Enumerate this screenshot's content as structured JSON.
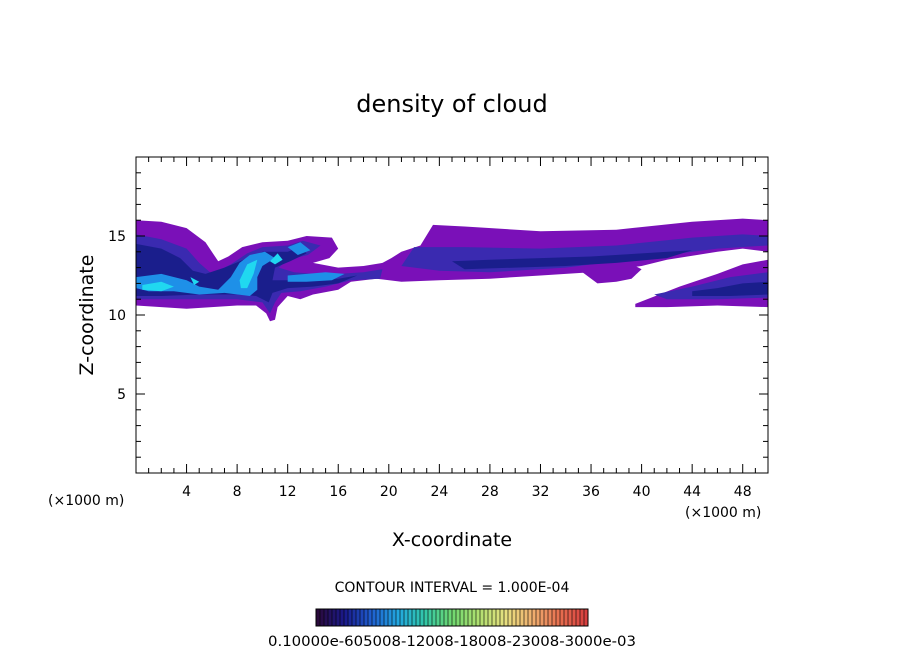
{
  "chart_data": {
    "type": "heatmap",
    "title": "density of cloud",
    "xlabel": "X-coordinate",
    "ylabel": "Z-coordinate",
    "x_unit": "(×1000 m)",
    "xlim": [
      0,
      50
    ],
    "ylim": [
      0,
      20
    ],
    "x_ticks": [
      4,
      8,
      12,
      16,
      20,
      24,
      28,
      32,
      36,
      40,
      44,
      48
    ],
    "y_ticks": [
      5,
      10,
      15
    ],
    "contour_interval_text": "CONTOUR INTERVAL = 1.000E-04",
    "colorbar": {
      "min": 0.0001,
      "max": 0.003,
      "label_text": "0.10000e-605008-12008-18008-23008-3000e-03",
      "colors": [
        "#2a0a3c",
        "#1a1a8c",
        "#1f5fd0",
        "#22a8e0",
        "#33c8a8",
        "#6fd870",
        "#b0e070",
        "#e8e080",
        "#f0b070",
        "#e87050",
        "#d84040"
      ]
    },
    "fill_colors": {
      "low": "#7a10b8",
      "mid": "#3a2ab0",
      "deep": "#1a1e8c",
      "high": "#1e90e8",
      "peak": "#20d8f0"
    },
    "regions": [
      {
        "level": "low",
        "points": [
          [
            0,
            16
          ],
          [
            2,
            15.9
          ],
          [
            4,
            15.5
          ],
          [
            5.5,
            14.6
          ],
          [
            6.5,
            13.4
          ],
          [
            7.3,
            13.7
          ],
          [
            8.4,
            14.3
          ],
          [
            10,
            14.6
          ],
          [
            12,
            14.7
          ],
          [
            13.5,
            15
          ],
          [
            15.5,
            14.9
          ],
          [
            16,
            14.2
          ],
          [
            15.3,
            13.6
          ],
          [
            14,
            13.3
          ],
          [
            16,
            13
          ],
          [
            18,
            13.1
          ],
          [
            19.5,
            13.3
          ],
          [
            20.2,
            13.6
          ],
          [
            21,
            14
          ],
          [
            22.5,
            14.4
          ],
          [
            23.5,
            15.7
          ],
          [
            26,
            15.6
          ],
          [
            32,
            15.3
          ],
          [
            38,
            15.4
          ],
          [
            44,
            15.9
          ],
          [
            48,
            16.1
          ],
          [
            50,
            16
          ],
          [
            50,
            14
          ],
          [
            48,
            14.2
          ],
          [
            46,
            14
          ],
          [
            42,
            13.5
          ],
          [
            40,
            13.1
          ],
          [
            36,
            12.7
          ],
          [
            32,
            12.5
          ],
          [
            28,
            12.3
          ],
          [
            24,
            12.2
          ],
          [
            21,
            12.1
          ],
          [
            19,
            12.3
          ],
          [
            17,
            12.1
          ],
          [
            16,
            11.6
          ],
          [
            14,
            11.3
          ],
          [
            13,
            11
          ],
          [
            12,
            11.2
          ],
          [
            11.2,
            10.5
          ],
          [
            11,
            9.7
          ],
          [
            10.6,
            9.6
          ],
          [
            10.3,
            10.1
          ],
          [
            9.5,
            10.6
          ],
          [
            8,
            10.6
          ],
          [
            4,
            10.4
          ],
          [
            0,
            10.6
          ]
        ]
      },
      {
        "level": "low",
        "points": [
          [
            35,
            12.9
          ],
          [
            37,
            13.1
          ],
          [
            39,
            13.3
          ],
          [
            40,
            12.9
          ],
          [
            39.2,
            12.3
          ],
          [
            38,
            12.1
          ],
          [
            36.5,
            12
          ]
        ]
      },
      {
        "level": "low",
        "points": [
          [
            39.5,
            10.7
          ],
          [
            43,
            11.8
          ],
          [
            46,
            12.6
          ],
          [
            48,
            13.2
          ],
          [
            50,
            13.5
          ],
          [
            50,
            10.5
          ],
          [
            46,
            10.6
          ],
          [
            42,
            10.5
          ],
          [
            39.5,
            10.5
          ]
        ]
      },
      {
        "level": "mid",
        "points": [
          [
            0,
            15.1
          ],
          [
            2,
            14.8
          ],
          [
            4,
            14.2
          ],
          [
            5,
            13.3
          ],
          [
            6,
            12.6
          ],
          [
            7.5,
            13.2
          ],
          [
            8.8,
            13.9
          ],
          [
            10,
            14.3
          ],
          [
            12,
            14.4
          ],
          [
            13.2,
            14.7
          ],
          [
            14.6,
            14.4
          ],
          [
            13.6,
            13.8
          ],
          [
            12,
            13.5
          ],
          [
            11.3,
            13
          ],
          [
            12.5,
            12.7
          ],
          [
            14,
            12.6
          ],
          [
            16,
            12.6
          ],
          [
            18,
            12.7
          ],
          [
            19.5,
            12.9
          ],
          [
            19.3,
            12.3
          ],
          [
            17,
            12.2
          ],
          [
            15,
            11.8
          ],
          [
            13,
            11.5
          ],
          [
            11.5,
            11.4
          ],
          [
            11,
            10.8
          ],
          [
            10.6,
            10.1
          ],
          [
            10,
            10.8
          ],
          [
            8,
            11
          ],
          [
            4,
            11
          ],
          [
            0,
            11
          ]
        ]
      },
      {
        "level": "mid",
        "points": [
          [
            22,
            14.3
          ],
          [
            26,
            14.3
          ],
          [
            32,
            14.2
          ],
          [
            38,
            14.4
          ],
          [
            44,
            14.9
          ],
          [
            48,
            15.1
          ],
          [
            50,
            15
          ],
          [
            50,
            14.4
          ],
          [
            46,
            14.2
          ],
          [
            40,
            13.6
          ],
          [
            34,
            13
          ],
          [
            28,
            12.7
          ],
          [
            24,
            12.8
          ],
          [
            21,
            13.1
          ]
        ]
      },
      {
        "level": "mid",
        "points": [
          [
            41,
            11.3
          ],
          [
            44,
            11.8
          ],
          [
            47,
            12.4
          ],
          [
            50,
            12.7
          ],
          [
            50,
            11.1
          ],
          [
            46,
            11
          ],
          [
            42,
            11
          ]
        ]
      },
      {
        "level": "deep",
        "points": [
          [
            0,
            14.5
          ],
          [
            2,
            14.2
          ],
          [
            3.5,
            13.6
          ],
          [
            4.5,
            12.8
          ],
          [
            5.5,
            12.6
          ],
          [
            7,
            13
          ],
          [
            8.5,
            13.5
          ],
          [
            10,
            14
          ],
          [
            12,
            14
          ],
          [
            13,
            14.3
          ],
          [
            13.5,
            13.9
          ],
          [
            12.2,
            13.4
          ],
          [
            11,
            13
          ],
          [
            10.8,
            12.2
          ],
          [
            12,
            12.2
          ],
          [
            14,
            12.2
          ],
          [
            16,
            12.3
          ],
          [
            17.5,
            12.5
          ],
          [
            16,
            12
          ],
          [
            14,
            11.8
          ],
          [
            12,
            11.7
          ],
          [
            10.8,
            11.4
          ],
          [
            10.5,
            10.8
          ],
          [
            9.5,
            11.2
          ],
          [
            8,
            11.3
          ],
          [
            5,
            11.3
          ],
          [
            2,
            11.2
          ],
          [
            0,
            11.2
          ]
        ]
      },
      {
        "level": "deep",
        "points": [
          [
            25,
            13.4
          ],
          [
            28,
            13.5
          ],
          [
            32,
            13.6
          ],
          [
            36,
            13.7
          ],
          [
            40,
            13.9
          ],
          [
            44,
            14.1
          ],
          [
            42,
            13.6
          ],
          [
            38,
            13.3
          ],
          [
            34,
            13.1
          ],
          [
            30,
            13
          ],
          [
            26,
            12.9
          ]
        ]
      },
      {
        "level": "deep",
        "points": [
          [
            44,
            11.5
          ],
          [
            46,
            11.7
          ],
          [
            48,
            12
          ],
          [
            50,
            12.1
          ],
          [
            50,
            11.3
          ],
          [
            47,
            11.2
          ],
          [
            44,
            11.2
          ]
        ]
      },
      {
        "level": "high",
        "points": [
          [
            0,
            12.4
          ],
          [
            2,
            12.6
          ],
          [
            4,
            12.2
          ],
          [
            5,
            11.8
          ],
          [
            6.5,
            11.6
          ],
          [
            7.5,
            12.4
          ],
          [
            8.2,
            13.3
          ],
          [
            9,
            13.8
          ],
          [
            10.2,
            14
          ],
          [
            11,
            13.6
          ],
          [
            10,
            13.1
          ],
          [
            9.6,
            12.4
          ],
          [
            9.6,
            11.6
          ],
          [
            9,
            11.2
          ],
          [
            7,
            11.4
          ],
          [
            5,
            11.3
          ],
          [
            3,
            11.5
          ],
          [
            1,
            11.5
          ],
          [
            0,
            11.7
          ]
        ]
      },
      {
        "level": "high",
        "points": [
          [
            12,
            14.3
          ],
          [
            13,
            14.6
          ],
          [
            13.8,
            14.1
          ],
          [
            12.8,
            13.8
          ]
        ]
      },
      {
        "level": "high",
        "points": [
          [
            12,
            12.5
          ],
          [
            13.5,
            12.6
          ],
          [
            15,
            12.7
          ],
          [
            16.5,
            12.6
          ],
          [
            15.5,
            12.2
          ],
          [
            13.5,
            12.1
          ],
          [
            12,
            12.1
          ]
        ]
      },
      {
        "level": "peak",
        "points": [
          [
            0.5,
            11.9
          ],
          [
            2,
            12.1
          ],
          [
            3,
            11.8
          ],
          [
            2,
            11.5
          ],
          [
            0.5,
            11.6
          ]
        ]
      },
      {
        "level": "peak",
        "points": [
          [
            8.2,
            12.2
          ],
          [
            8.8,
            13.2
          ],
          [
            9.6,
            13.5
          ],
          [
            9.3,
            12.6
          ],
          [
            8.8,
            11.7
          ],
          [
            8.3,
            11.7
          ]
        ]
      },
      {
        "level": "peak",
        "points": [
          [
            10.6,
            13.4
          ],
          [
            11.2,
            13.9
          ],
          [
            11.6,
            13.5
          ],
          [
            11,
            13.2
          ]
        ]
      },
      {
        "level": "peak",
        "points": [
          [
            4.3,
            12.4
          ],
          [
            5,
            12.1
          ],
          [
            4.6,
            11.9
          ]
        ]
      }
    ]
  }
}
